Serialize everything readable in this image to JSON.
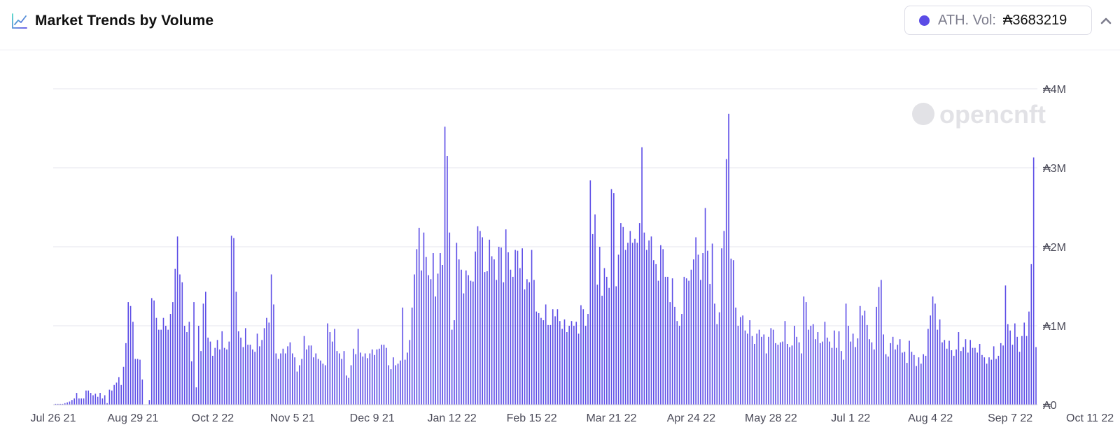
{
  "header": {
    "title": "Market Trends by Volume",
    "title_icon": "line-chart-icon",
    "collapse_icon": "chevron-up-icon"
  },
  "ath": {
    "label": "ATH. Vol:",
    "value": "₳3683219",
    "dot_color": "#5b4ce6"
  },
  "watermark": {
    "text": "opencnft",
    "logo": "opencnft-logo-icon"
  },
  "colors": {
    "bar": "#5b4ce6",
    "grid": "#e4e4ec",
    "tick_text": "#4a4a58"
  },
  "chart_data": {
    "type": "bar",
    "title": "Market Trends by Volume",
    "xlabel": "",
    "ylabel": "",
    "ylim": [
      0,
      4000000
    ],
    "y_ticks": [
      0,
      1000000,
      2000000,
      3000000,
      4000000
    ],
    "y_tick_labels": [
      "₳0",
      "₳1M",
      "₳2M",
      "₳3M",
      "₳4M"
    ],
    "x_tick_labels": [
      "Jul 26 21",
      "Aug 29 21",
      "Oct 2 22",
      "Nov 5 21",
      "Dec 9 21",
      "Jan 12 22",
      "Feb 15 22",
      "Mar 21 22",
      "Apr 24 22",
      "May 28 22",
      "Jul 1 22",
      "Aug 4 22",
      "Sep 7 22",
      "Oct 11 22"
    ],
    "x_tick_day_index": [
      0,
      34,
      68,
      102,
      136,
      170,
      204,
      238,
      272,
      306,
      340,
      374,
      408,
      442
    ],
    "grid": true,
    "y_axis_position": "right",
    "series": [
      {
        "name": "Volume",
        "values": [
          0,
          10000,
          10000,
          10000,
          10000,
          20000,
          30000,
          40000,
          60000,
          80000,
          150000,
          80000,
          80000,
          80000,
          180000,
          180000,
          150000,
          120000,
          140000,
          100000,
          150000,
          80000,
          120000,
          20000,
          190000,
          180000,
          250000,
          280000,
          350000,
          250000,
          480000,
          780000,
          1300000,
          1250000,
          1050000,
          580000,
          580000,
          570000,
          320000,
          0,
          0,
          60000,
          1350000,
          1320000,
          1100000,
          950000,
          950000,
          1100000,
          1000000,
          950000,
          1150000,
          1300000,
          1720000,
          2130000,
          1650000,
          1550000,
          1000000,
          920000,
          1050000,
          550000,
          1300000,
          220000,
          1000000,
          680000,
          1280000,
          1430000,
          850000,
          800000,
          620000,
          720000,
          820000,
          700000,
          930000,
          720000,
          700000,
          800000,
          2140000,
          2110000,
          1430000,
          930000,
          850000,
          730000,
          970000,
          760000,
          760000,
          700000,
          670000,
          900000,
          740000,
          820000,
          970000,
          1100000,
          1040000,
          1650000,
          1270000,
          650000,
          580000,
          650000,
          710000,
          650000,
          740000,
          790000,
          650000,
          600000,
          420000,
          500000,
          580000,
          870000,
          700000,
          750000,
          750000,
          600000,
          650000,
          580000,
          560000,
          520000,
          500000,
          1030000,
          920000,
          800000,
          960000,
          680000,
          650000,
          580000,
          680000,
          370000,
          340000,
          500000,
          710000,
          640000,
          960000,
          660000,
          610000,
          650000,
          590000,
          650000,
          700000,
          630000,
          700000,
          710000,
          760000,
          760000,
          720000,
          500000,
          450000,
          600000,
          500000,
          520000,
          560000,
          1230000,
          570000,
          660000,
          820000,
          1230000,
          1650000,
          1970000,
          2240000,
          1700000,
          2180000,
          1870000,
          1640000,
          1590000,
          1920000,
          1370000,
          1660000,
          1920000,
          1770000,
          3520000,
          3150000,
          2180000,
          950000,
          1070000,
          2050000,
          1840000,
          1710000,
          1410000,
          1700000,
          1640000,
          1570000,
          1560000,
          1940000,
          2260000,
          2200000,
          2120000,
          1680000,
          1690000,
          2090000,
          1880000,
          1840000,
          1580000,
          2000000,
          1990000,
          1550000,
          2220000,
          1930000,
          1710000,
          1620000,
          1960000,
          1950000,
          1730000,
          1980000,
          1460000,
          1590000,
          1550000,
          1960000,
          1580000,
          1180000,
          1160000,
          1100000,
          1070000,
          1270000,
          1010000,
          1010000,
          1210000,
          1120000,
          1210000,
          1060000,
          960000,
          1080000,
          920000,
          1000000,
          1060000,
          1000000,
          1050000,
          900000,
          1260000,
          1210000,
          1000000,
          1150000,
          2840000,
          2160000,
          2410000,
          1520000,
          2000000,
          1380000,
          1730000,
          1620000,
          1480000,
          2730000,
          2680000,
          1500000,
          1900000,
          2300000,
          2250000,
          1960000,
          2050000,
          2200000,
          2050000,
          2100000,
          2050000,
          2300000,
          3260000,
          2180000,
          1960000,
          2080000,
          2130000,
          1830000,
          1780000,
          1570000,
          2020000,
          1970000,
          1620000,
          1620000,
          1300000,
          1600000,
          1240000,
          1060000,
          1000000,
          1150000,
          1620000,
          1600000,
          1570000,
          1710000,
          1840000,
          2120000,
          1900000,
          1580000,
          1920000,
          2490000,
          1950000,
          1530000,
          2040000,
          1280000,
          1020000,
          1170000,
          1980000,
          2200000,
          3110000,
          3683219,
          1850000,
          1830000,
          1230000,
          1000000,
          1110000,
          1130000,
          940000,
          900000,
          1070000,
          870000,
          770000,
          900000,
          950000,
          860000,
          890000,
          650000,
          860000,
          970000,
          950000,
          780000,
          760000,
          790000,
          800000,
          1060000,
          770000,
          730000,
          750000,
          1000000,
          860000,
          790000,
          650000,
          1370000,
          1300000,
          950000,
          1000000,
          1020000,
          830000,
          920000,
          780000,
          800000,
          1050000,
          850000,
          800000,
          720000,
          940000,
          720000,
          930000,
          680000,
          570000,
          1280000,
          1000000,
          800000,
          900000,
          730000,
          840000,
          1250000,
          1130000,
          1190000,
          1010000,
          830000,
          790000,
          700000,
          1240000,
          1490000,
          1580000,
          890000,
          640000,
          610000,
          780000,
          860000,
          700000,
          760000,
          830000,
          660000,
          670000,
          530000,
          810000,
          670000,
          630000,
          490000,
          600000,
          520000,
          640000,
          620000,
          960000,
          1130000,
          1370000,
          1280000,
          950000,
          1080000,
          790000,
          820000,
          710000,
          810000,
          690000,
          620000,
          700000,
          920000,
          680000,
          730000,
          830000,
          660000,
          820000,
          720000,
          720000,
          660000,
          770000,
          630000,
          600000,
          520000,
          600000,
          570000,
          740000,
          580000,
          620000,
          780000,
          750000,
          1510000,
          1020000,
          940000,
          760000,
          1030000,
          860000,
          670000,
          870000,
          1040000,
          870000,
          1180000,
          1780000,
          3130000,
          730000
        ]
      }
    ]
  }
}
